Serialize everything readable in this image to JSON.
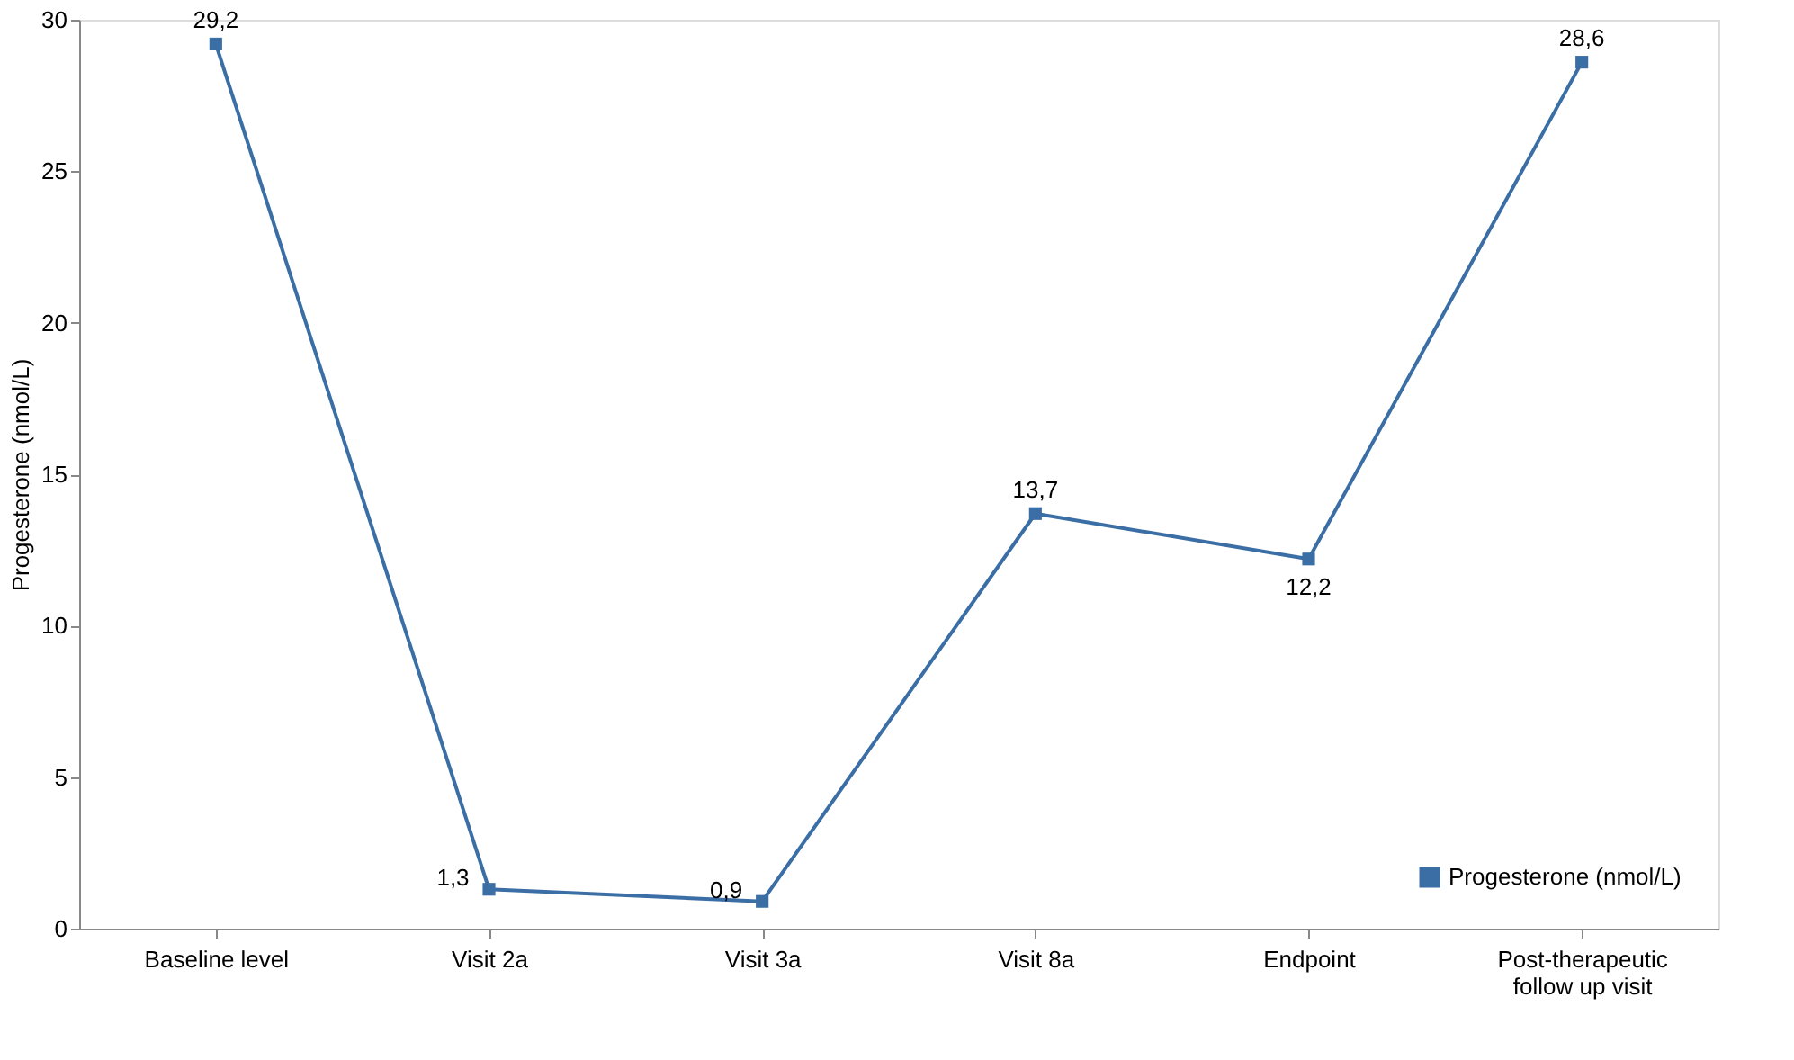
{
  "chart_data": {
    "type": "line",
    "ylabel": "Progesterone (nmol/L)",
    "categories": [
      "Baseline level",
      "Visit 2a",
      "Visit 3a",
      "Visit 8a",
      "Endpoint",
      "Post-therapeutic follow up visit"
    ],
    "series": [
      {
        "name": "Progesterone (nmol/L)",
        "color": "#3a6ea5",
        "values": [
          29.2,
          1.3,
          0.9,
          13.7,
          12.2,
          28.6
        ],
        "value_labels": [
          "29,2",
          "1,3",
          "0,9",
          "13,7",
          "12,2",
          "28,6"
        ]
      }
    ],
    "ylim": [
      0,
      30
    ],
    "yticks": [
      0,
      5,
      10,
      15,
      20,
      25,
      30
    ],
    "grid": false,
    "legend": "bottom right",
    "marker": "square",
    "line_style": "solid"
  }
}
